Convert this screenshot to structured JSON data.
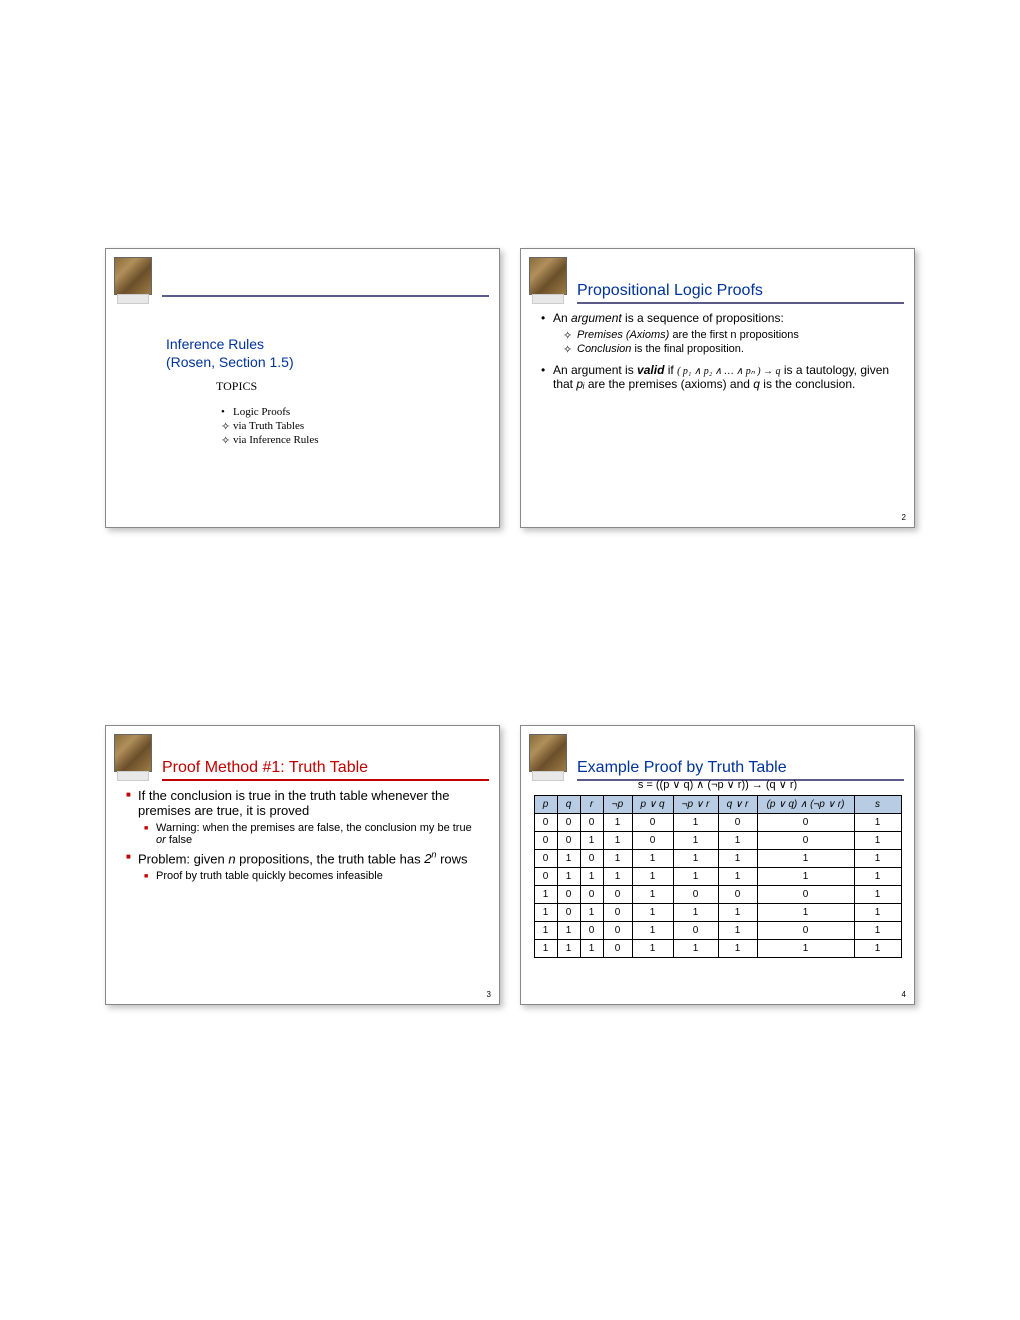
{
  "slide1": {
    "title_line1": "Inference Rules",
    "title_line2": "(Rosen, Section 1.5)",
    "topics_label": "TOPICS",
    "items": [
      "Logic Proofs",
      "via Truth Tables",
      "via Inference Rules"
    ]
  },
  "slide2": {
    "title": "Propositional Logic Proofs",
    "b1_pre": "An ",
    "b1_em": "argument",
    "b1_post": " is a sequence of propositions:",
    "d1_em": "Premises (Axioms)",
    "d1_post": " are the first n propositions",
    "d2_em": "Conclusion",
    "d2_post": " is the final proposition.",
    "b2_pre": "An argument is ",
    "b2_em": "valid",
    "b2_post": " if   ",
    "b2_formula": "( p₁ ∧ p₂ ∧ … ∧ pₙ ) → q",
    "b2_tail": "    is a tautology, given that ",
    "b2_pi": "pᵢ",
    "b2_mid2": " are the premises (axioms) and ",
    "b2_q": "q",
    "b2_end": " is the conclusion.",
    "num": "2"
  },
  "slide3": {
    "title": "Proof Method #1: Truth Table",
    "b1": "If the conclusion is true in the truth table whenever the premises are true, it is proved",
    "b1s_pre": "Warning: when the premises are false, the conclusion my be true ",
    "b1s_em": "or",
    "b1s_post": " false",
    "b2_pre": "Problem: given ",
    "b2_n": "n",
    "b2_mid": " propositions, the truth table has ",
    "b2_2n_base": "2",
    "b2_2n_exp": "n",
    "b2_post": " rows",
    "b2s": "Proof by truth table quickly becomes infeasible",
    "num": "3"
  },
  "slide4": {
    "title": "Example Proof by Truth Table",
    "caption": "s = ((p ∨ q)  ∧  (¬p ∨ r)) → (q ∨ r)",
    "headers": [
      "p",
      "q",
      "r",
      "¬p",
      "p ∨ q",
      "¬p ∨ r",
      "q ∨ r",
      "(p ∨ q) ∧ (¬p ∨ r)",
      "s"
    ],
    "col_widths": [
      "16px",
      "16px",
      "16px",
      "22px",
      "34px",
      "38px",
      "32px",
      "90px",
      "40px"
    ],
    "rows": [
      [
        "0",
        "0",
        "0",
        "1",
        "0",
        "1",
        "0",
        "0",
        "1"
      ],
      [
        "0",
        "0",
        "1",
        "1",
        "0",
        "1",
        "1",
        "0",
        "1"
      ],
      [
        "0",
        "1",
        "0",
        "1",
        "1",
        "1",
        "1",
        "1",
        "1"
      ],
      [
        "0",
        "1",
        "1",
        "1",
        "1",
        "1",
        "1",
        "1",
        "1"
      ],
      [
        "1",
        "0",
        "0",
        "0",
        "1",
        "0",
        "0",
        "0",
        "1"
      ],
      [
        "1",
        "0",
        "1",
        "0",
        "1",
        "1",
        "1",
        "1",
        "1"
      ],
      [
        "1",
        "1",
        "0",
        "0",
        "1",
        "0",
        "1",
        "0",
        "1"
      ],
      [
        "1",
        "1",
        "1",
        "0",
        "1",
        "1",
        "1",
        "1",
        "1"
      ]
    ],
    "num": "4"
  }
}
